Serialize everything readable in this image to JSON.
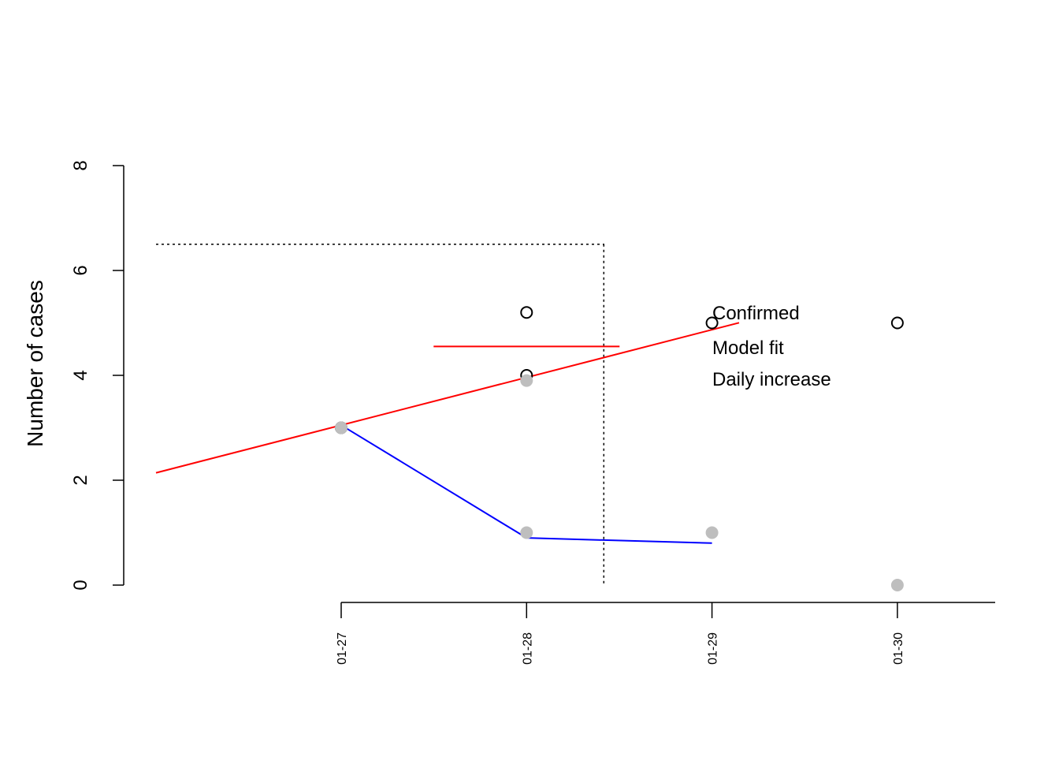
{
  "chart_data": {
    "type": "line",
    "title": "",
    "xlabel": "",
    "ylabel": "Number of cases",
    "ylim": [
      0,
      8
    ],
    "yticks": [
      0,
      2,
      4,
      6,
      8
    ],
    "categories": [
      "01-27",
      "01-28",
      "01-29",
      "01-30"
    ],
    "grid": false,
    "legend": {
      "placement": "center-right",
      "entries": [
        "Confirmed",
        "Model fit",
        "Daily increase"
      ]
    },
    "series": [
      {
        "name": "Confirmed",
        "kind": "points-open",
        "color": "#000000",
        "points": [
          {
            "x": "01-27",
            "y": 3.0
          },
          {
            "x": "01-28",
            "y": 4.0
          },
          {
            "x": "01-28",
            "y": 5.2
          },
          {
            "x": "01-29",
            "y": 5.0
          },
          {
            "x": "01-30",
            "y": 5.0
          }
        ]
      },
      {
        "name": "Daily increase",
        "kind": "points-filled",
        "color": "#bebebe",
        "points": [
          {
            "x": "01-27",
            "y": 3.0
          },
          {
            "x": "01-28",
            "y": 3.9
          },
          {
            "x": "01-28",
            "y": 1.0
          },
          {
            "x": "01-29",
            "y": 1.0
          },
          {
            "x": "01-30",
            "y": 0.0
          }
        ]
      },
      {
        "name": "Model fit",
        "kind": "line",
        "color": "#ff0000",
        "x": [
          "01-27",
          "01-28",
          "01-29"
        ],
        "y": [
          3.05,
          3.98,
          4.87
        ]
      },
      {
        "name": "",
        "kind": "line",
        "color": "#0000ff",
        "x": [
          "01-27",
          "01-28",
          "01-29"
        ],
        "y": [
          3.05,
          0.9,
          0.8
        ]
      }
    ],
    "annotations": {
      "reference_lines": [
        {
          "kind": "horizontal",
          "style": "dotted",
          "y": 6.5
        },
        {
          "kind": "vertical",
          "style": "dotted",
          "x": "01-28"
        },
        {
          "kind": "horizontal",
          "style": "solid",
          "color": "#ff0000",
          "y": 4.55,
          "x": "01-28"
        }
      ]
    }
  }
}
